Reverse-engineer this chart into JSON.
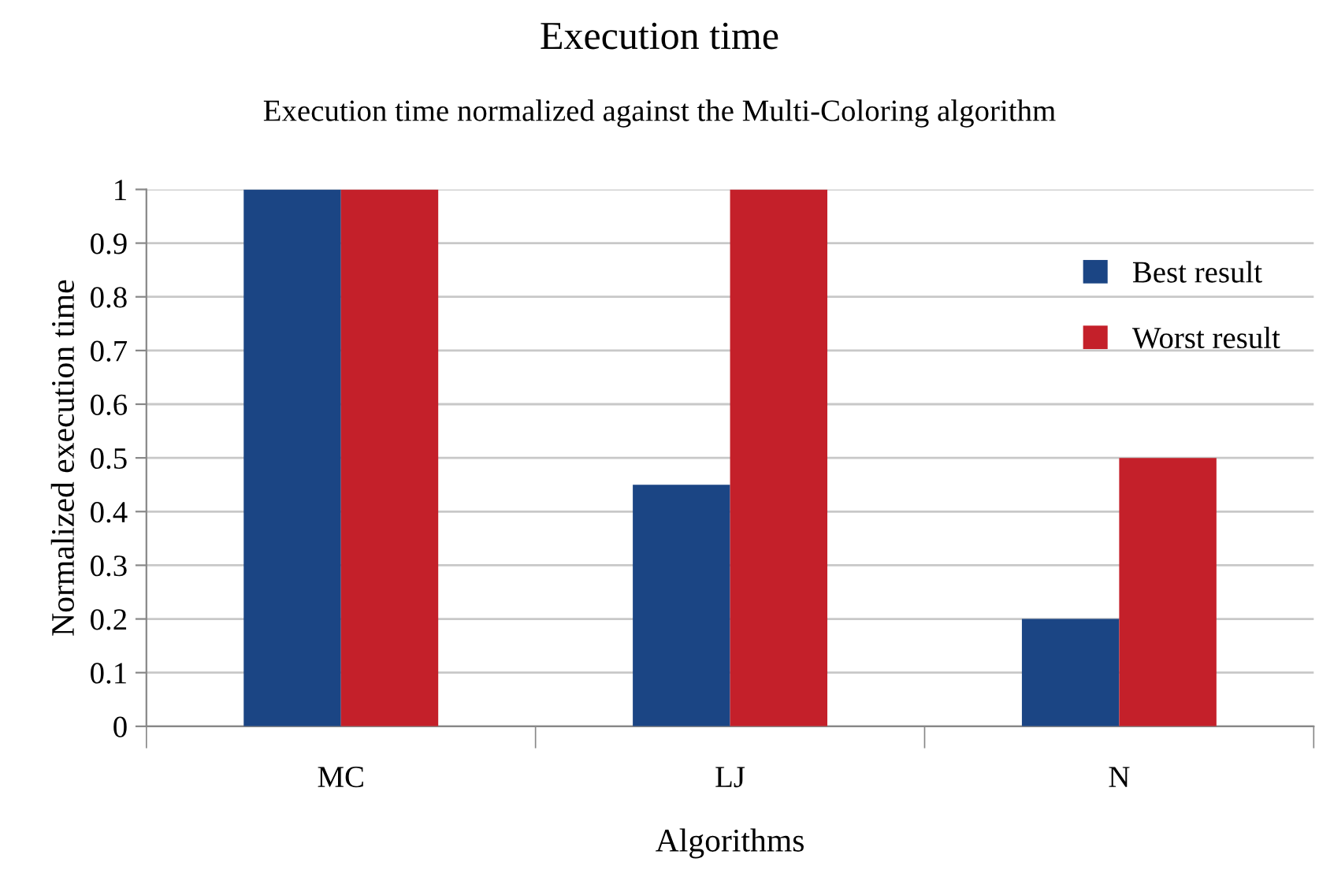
{
  "chart_data": {
    "type": "bar",
    "title": "Execution time",
    "subtitle": "Execution time normalized against the Multi-Coloring algorithm",
    "xlabel": "Algorithms",
    "ylabel": "Normalized execution time",
    "categories": [
      "MC",
      "LJ",
      "N"
    ],
    "series": [
      {
        "name": "Best result",
        "color": "#1b4584",
        "values": [
          1,
          0.45,
          0.2
        ]
      },
      {
        "name": "Worst result",
        "color": "#c4202a",
        "values": [
          1,
          1,
          0.5
        ]
      }
    ],
    "ylim": [
      0,
      1
    ],
    "yticks": [
      0,
      0.1,
      0.2,
      0.3,
      0.4,
      0.5,
      0.6,
      0.7,
      0.8,
      0.9,
      1
    ],
    "grid": "y",
    "legend": "top right"
  }
}
